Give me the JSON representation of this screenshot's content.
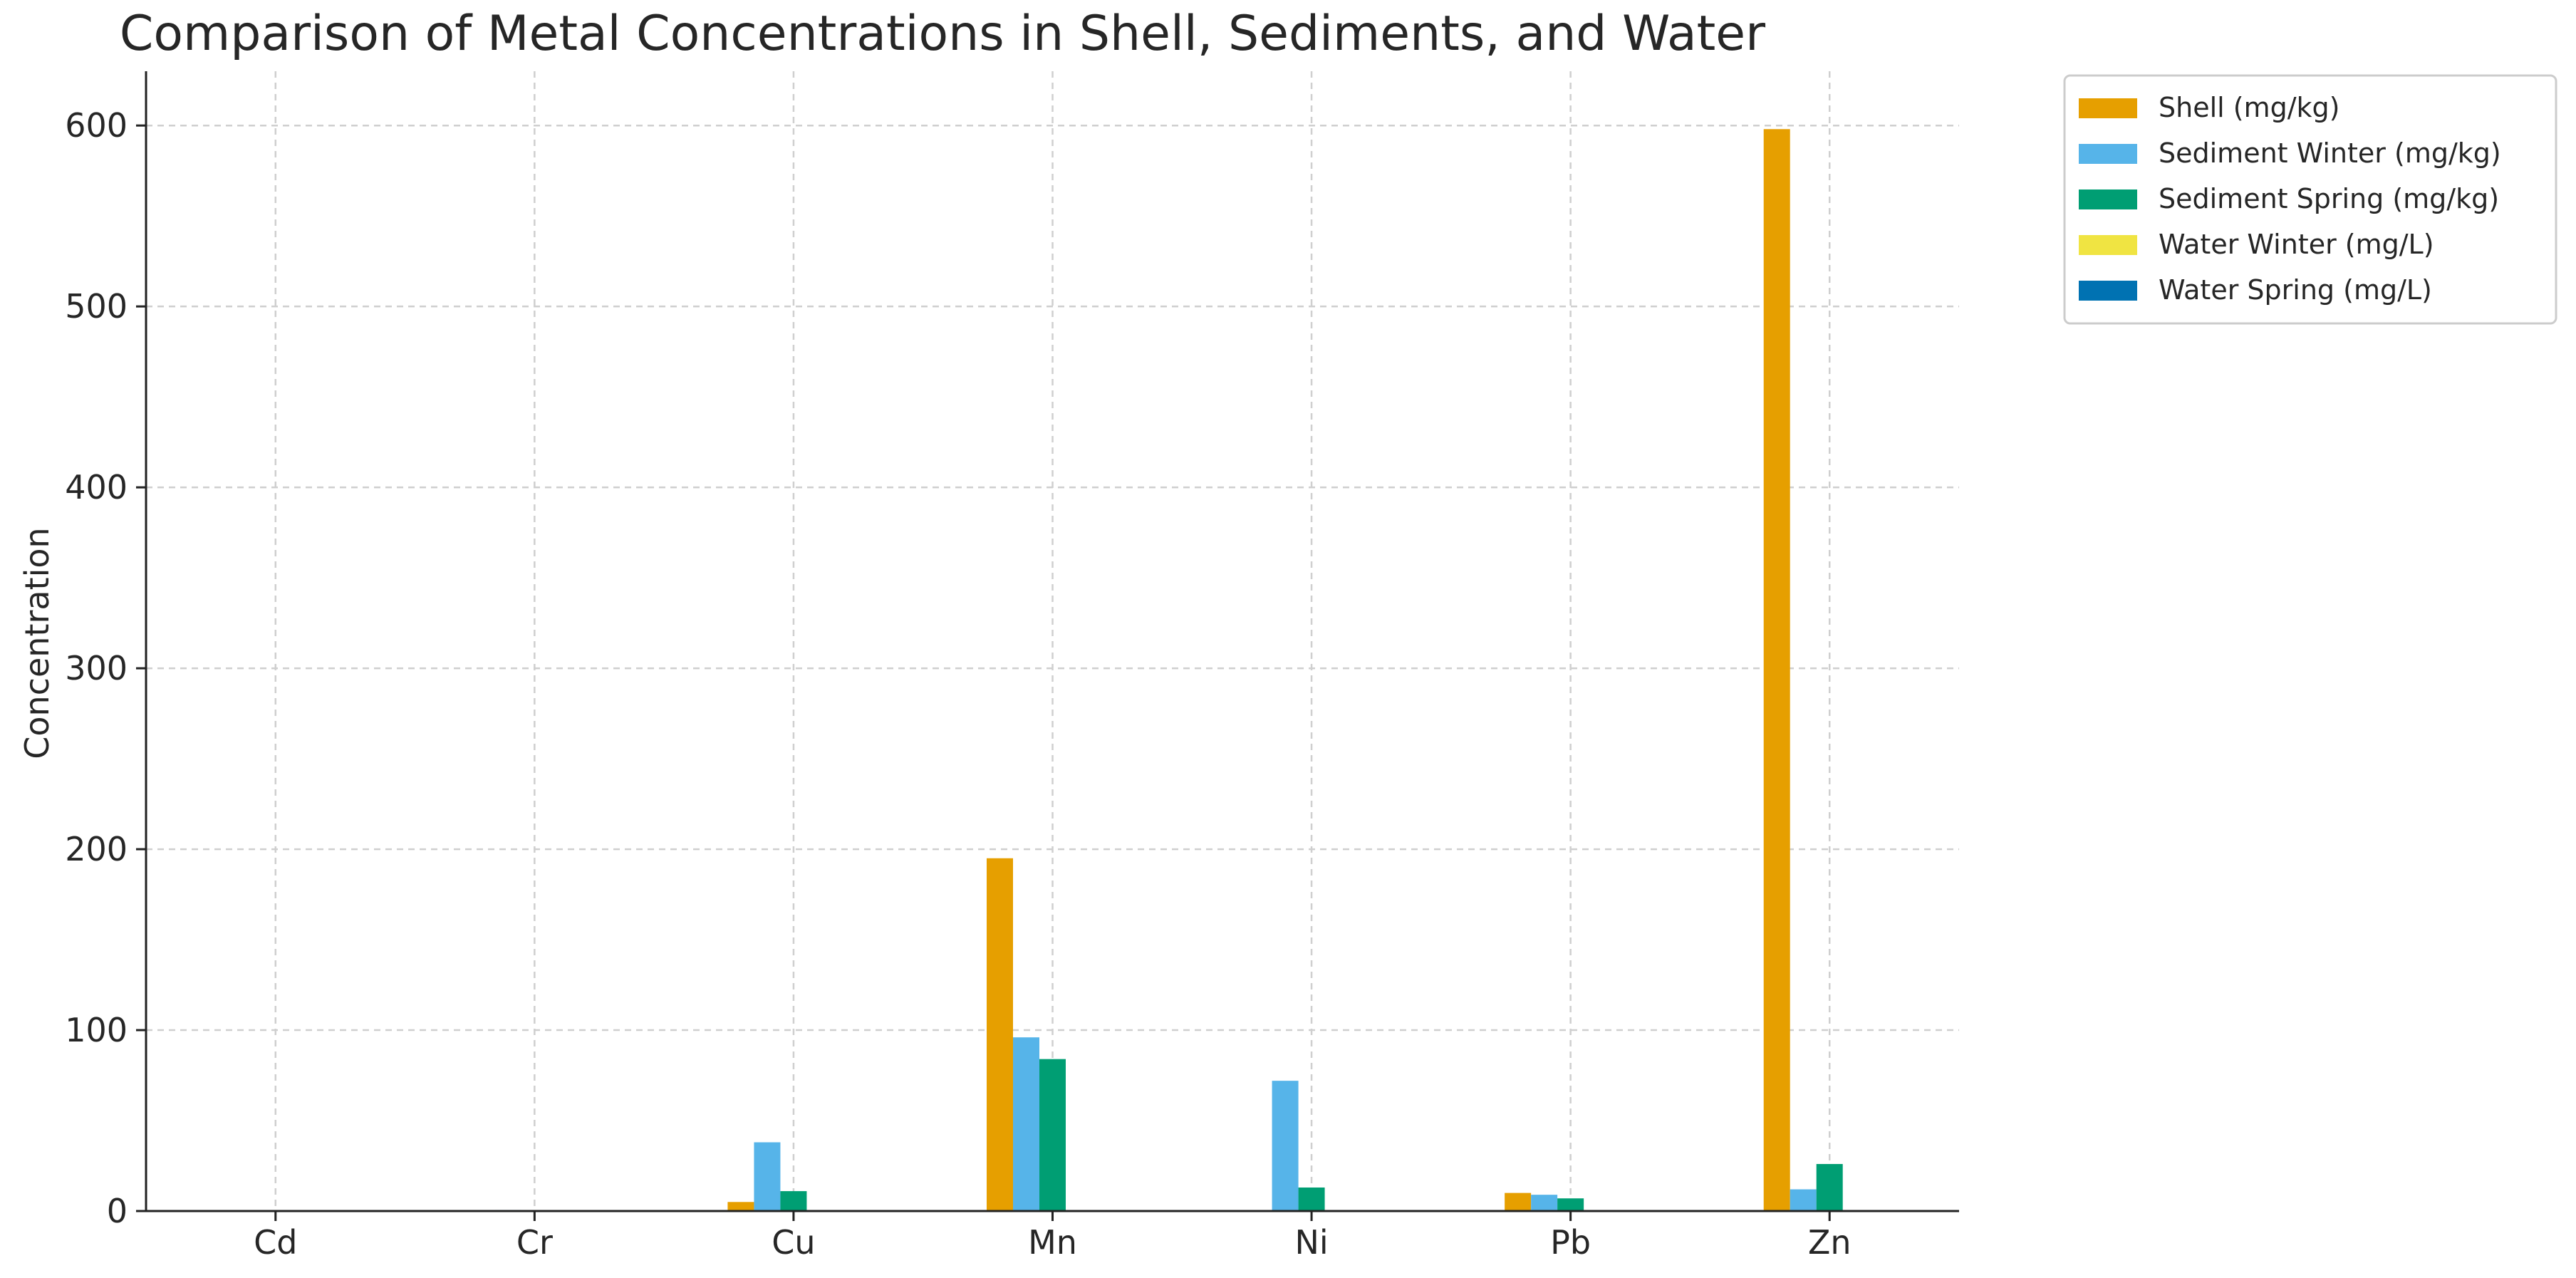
{
  "chart_data": {
    "type": "bar",
    "title": "Comparison of Metal Concentrations in Shell, Sediments, and Water",
    "xlabel": "",
    "ylabel": "Concentration",
    "categories": [
      "Cd",
      "Cr",
      "Cu",
      "Mn",
      "Ni",
      "Pb",
      "Zn"
    ],
    "ylim": [
      0,
      630
    ],
    "yticks": [
      0,
      100,
      200,
      300,
      400,
      500,
      600
    ],
    "ytick_labels": [
      "0",
      "100",
      "200",
      "300",
      "400",
      "500",
      "600"
    ],
    "grid": true,
    "legend_position": "outside-top-right",
    "series": [
      {
        "name": "Shell (mg/kg)",
        "color": "#E69F00",
        "values": [
          0.2,
          0.5,
          5,
          195,
          0.4,
          10,
          598
        ]
      },
      {
        "name": "Sediment Winter (mg/kg)",
        "color": "#56B4E9",
        "values": [
          0.3,
          0.6,
          38,
          96,
          72,
          9,
          12
        ]
      },
      {
        "name": "Sediment Spring (mg/kg)",
        "color": "#009E73",
        "values": [
          0.2,
          0.5,
          11,
          84,
          13,
          7,
          26
        ]
      },
      {
        "name": "Water Winter (mg/L)",
        "color": "#F0E442",
        "values": [
          0.01,
          0.02,
          0.03,
          0.1,
          0.02,
          0.02,
          0.1
        ]
      },
      {
        "name": "Water Spring (mg/L)",
        "color": "#0072B2",
        "values": [
          0.01,
          0.02,
          0.03,
          0.1,
          0.02,
          0.02,
          0.1
        ]
      }
    ]
  }
}
